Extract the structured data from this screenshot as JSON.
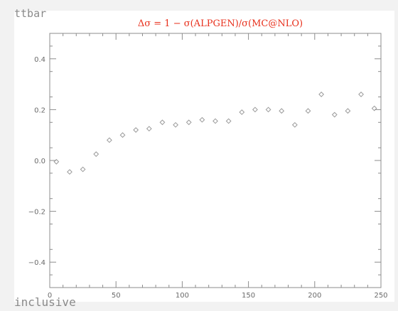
{
  "chart_data": {
    "type": "scatter",
    "title": "Δσ = 1 − σ(ALPGEN)/σ(MC@NLO)",
    "corner_label": "ttbar",
    "bottom_label": "inclusive",
    "xlabel": "",
    "ylabel": "",
    "xlim": [
      0,
      250
    ],
    "ylim": [
      -0.5,
      0.5
    ],
    "x_ticks": [
      0,
      50,
      100,
      150,
      200,
      250
    ],
    "y_ticks": [
      -0.4,
      -0.2,
      0.0,
      0.2,
      0.4
    ],
    "x_tick_labels": [
      "0",
      "50",
      "100",
      "150",
      "200",
      "250"
    ],
    "y_tick_labels": [
      "−0.4",
      "−0.2",
      "0.0",
      "0.2",
      "0.4"
    ],
    "grid": false,
    "legend": "none",
    "marker_color": "#9a9a9a",
    "title_color": "#e8301c",
    "series": [
      {
        "x": [
          5,
          15,
          25,
          35,
          45,
          55,
          65,
          75,
          85,
          95,
          105,
          115,
          125,
          135,
          145,
          155,
          165,
          175,
          185,
          195,
          205,
          215,
          225,
          235,
          245
        ],
        "y": [
          -0.005,
          -0.045,
          -0.035,
          0.025,
          0.08,
          0.1,
          0.12,
          0.125,
          0.15,
          0.14,
          0.15,
          0.16,
          0.155,
          0.155,
          0.19,
          0.2,
          0.2,
          0.195,
          0.14,
          0.195,
          0.26,
          0.18,
          0.195,
          0.26,
          0.205
        ]
      }
    ]
  }
}
